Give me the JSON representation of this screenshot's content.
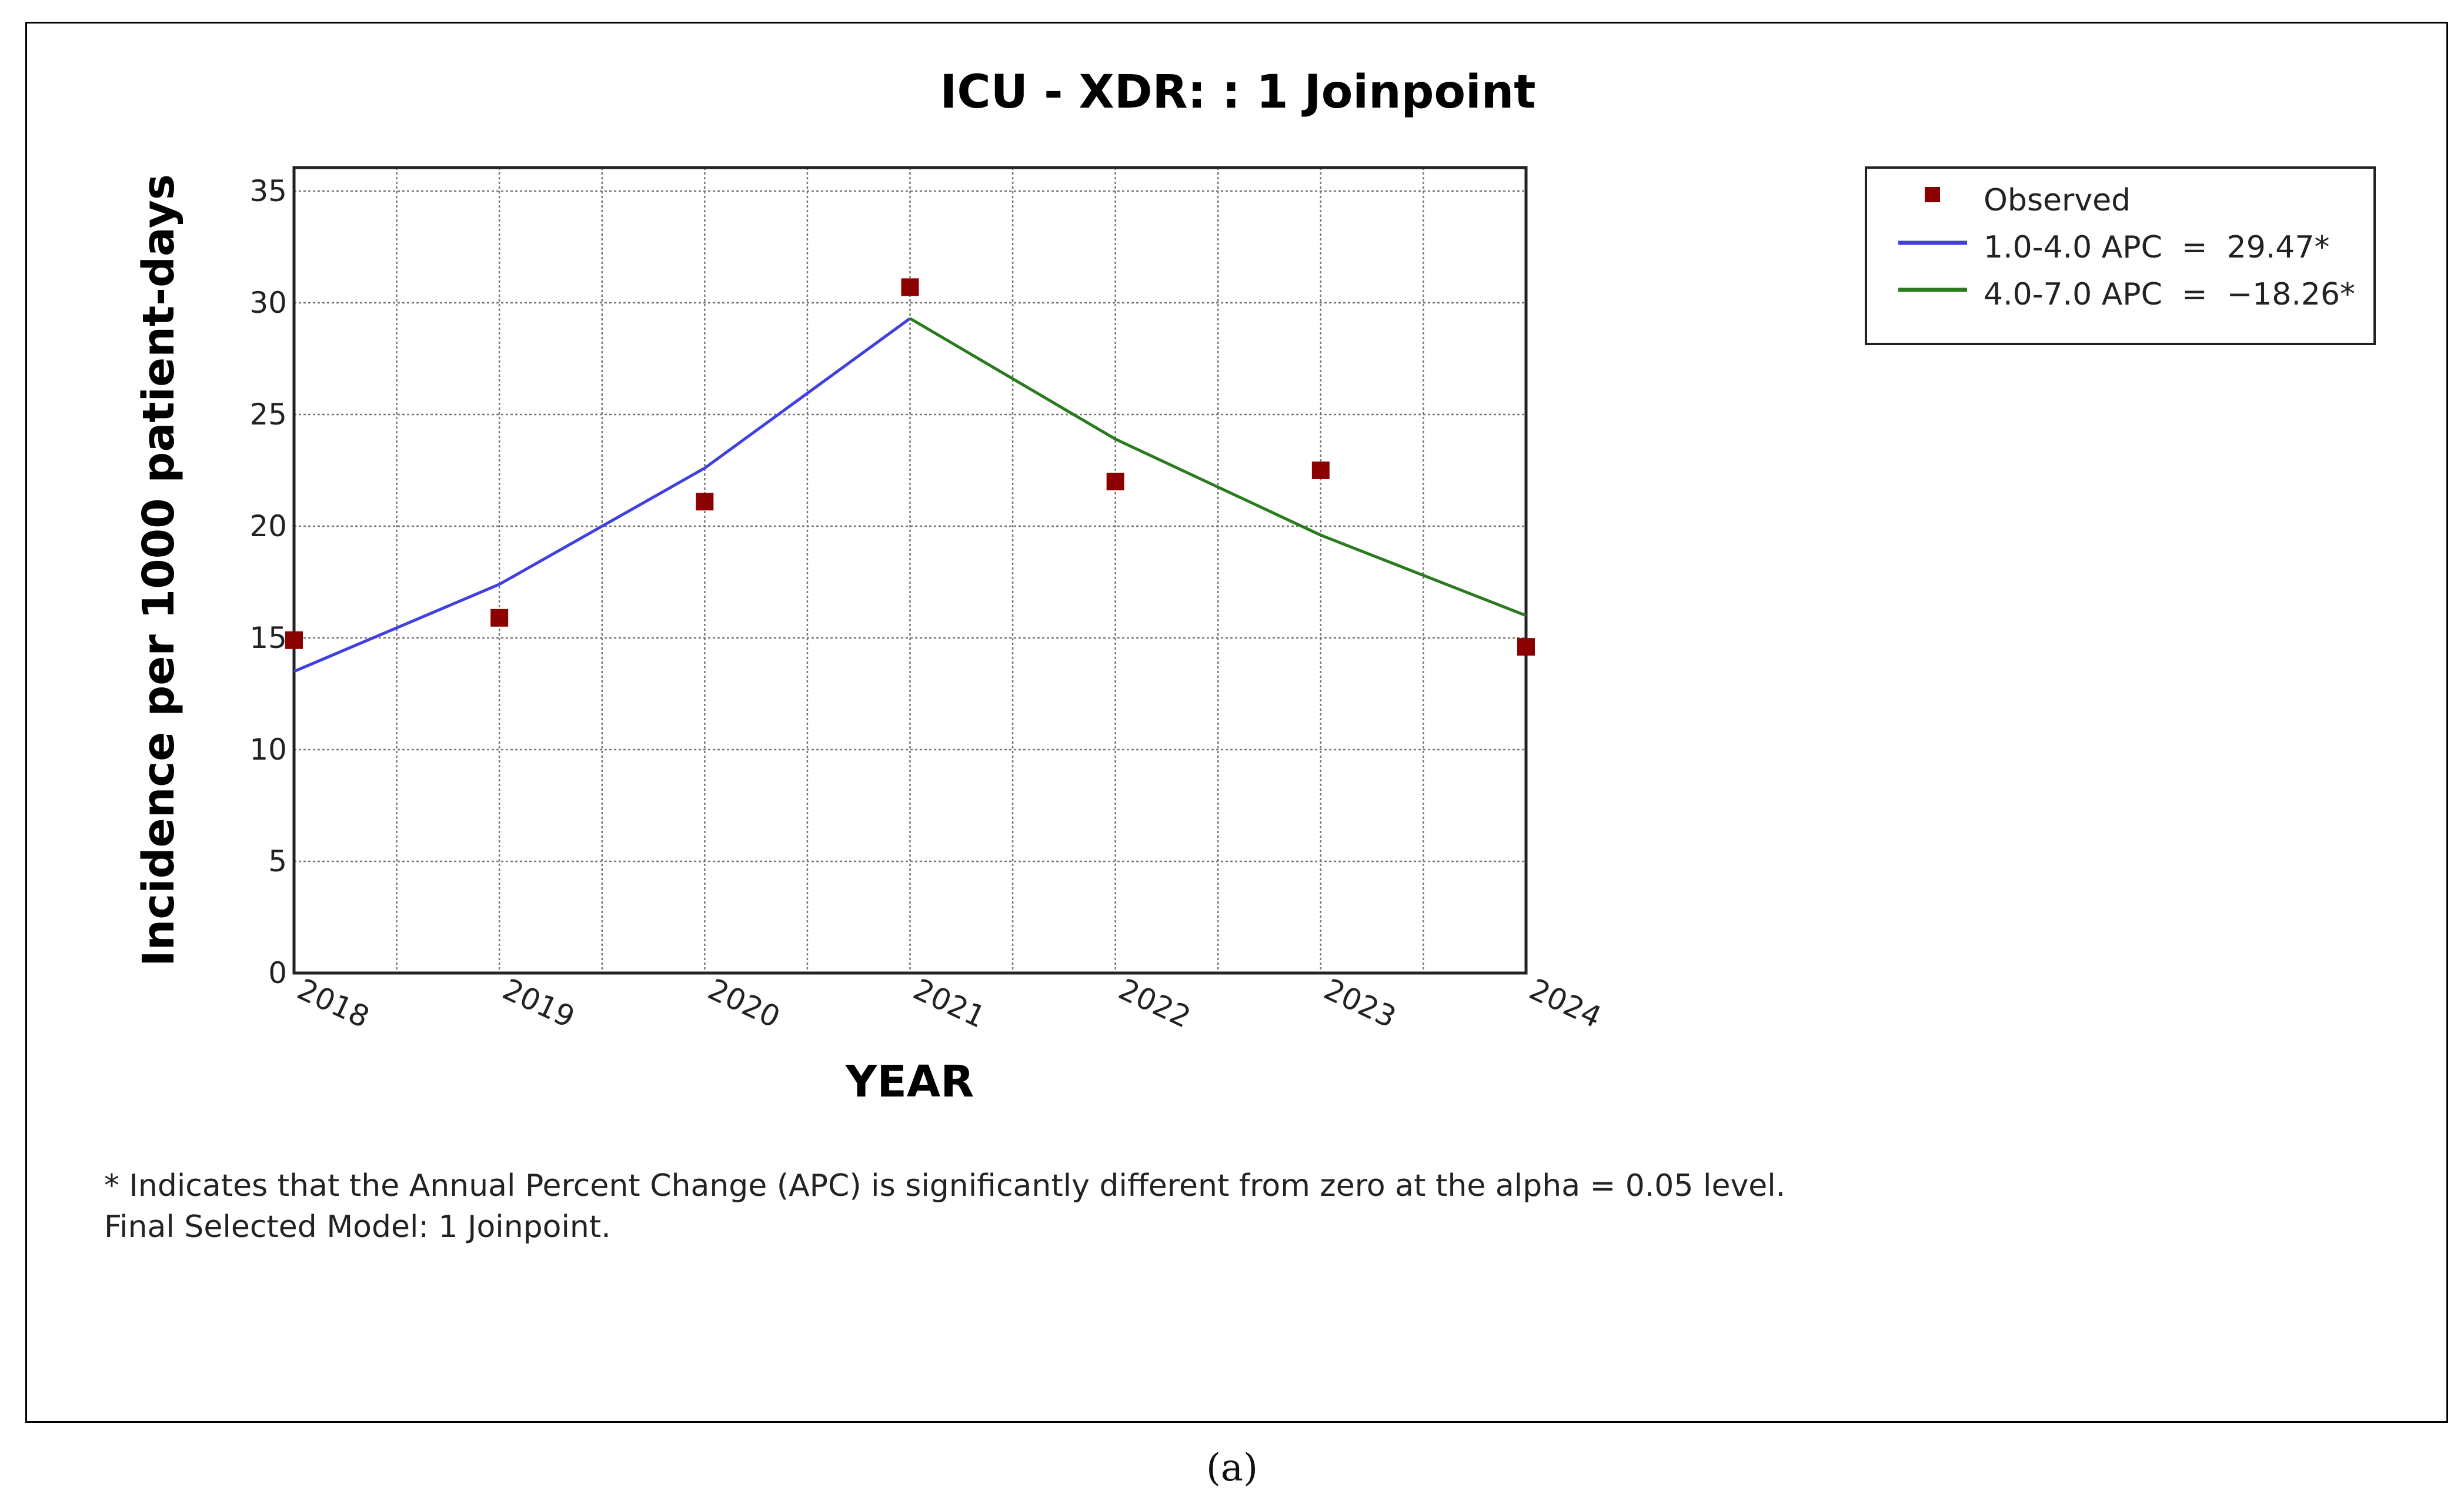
{
  "chart_data": {
    "type": "line",
    "title": "ICU - XDR: : 1 Joinpoint",
    "xlabel": "YEAR",
    "ylabel": "Incidence per 1000 patient-days",
    "x_ticks": [
      "2018",
      "2019",
      "2020",
      "2021",
      "2022",
      "2023",
      "2024"
    ],
    "x_range": [
      2018,
      2024
    ],
    "ylim": [
      0,
      35
    ],
    "y_ticks": [
      0,
      5,
      10,
      15,
      20,
      25,
      30,
      35
    ],
    "grid": true,
    "legend_position": "right",
    "series": [
      {
        "name": "Observed",
        "kind": "scatter",
        "color": "#8b0000",
        "x": [
          2018,
          2019,
          2020,
          2021,
          2022,
          2023,
          2024
        ],
        "y": [
          14.9,
          15.9,
          21.1,
          30.7,
          22.0,
          22.5,
          14.6
        ]
      },
      {
        "name": "1.0-4.0 APC  =  29.47*",
        "kind": "line",
        "color": "#4040e0",
        "x": [
          2018,
          2019,
          2020,
          2021
        ],
        "y": [
          13.5,
          17.4,
          22.6,
          29.3
        ]
      },
      {
        "name": "4.0-7.0 APC  =  −18.26*",
        "kind": "line",
        "color": "#2a7a1e",
        "x": [
          2021,
          2022,
          2023,
          2024
        ],
        "y": [
          29.3,
          23.9,
          19.6,
          16.0
        ]
      }
    ]
  },
  "notes": [
    "* Indicates that the Annual Percent Change (APC) is significantly different from zero at the alpha = 0.05 level.",
    "Final Selected Model: 1 Joinpoint."
  ],
  "caption": "(a)"
}
